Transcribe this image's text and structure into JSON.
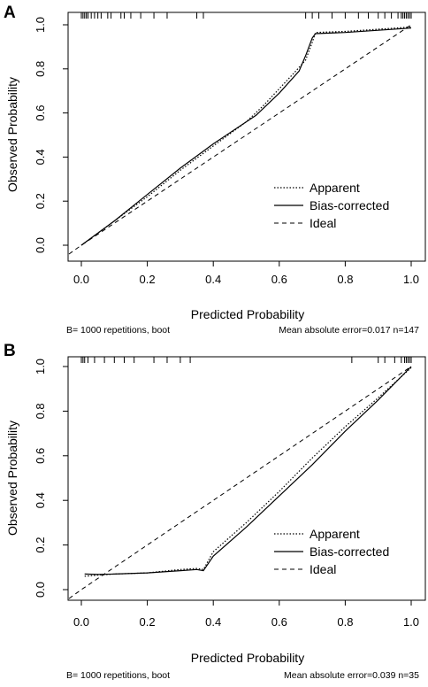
{
  "chart_data": [
    {
      "panel_label": "A",
      "type": "line",
      "xlabel": "Predicted Probability",
      "ylabel": "Observed Probability",
      "xlim": [
        0,
        1
      ],
      "ylim": [
        0,
        1
      ],
      "x_ticks": [
        "0.0",
        "0.2",
        "0.4",
        "0.6",
        "0.8",
        "1.0"
      ],
      "y_ticks": [
        "0.0",
        "0.2",
        "0.4",
        "0.6",
        "0.8",
        "1.0"
      ],
      "legend_position": "bottom-right",
      "footer_left": "B= 1000 repetitions, boot",
      "footer_right": "Mean absolute error=0.017 n=147",
      "series": [
        {
          "name": "Apparent",
          "style": "dotted",
          "x": [
            0.0,
            0.1,
            0.2,
            0.3,
            0.4,
            0.5,
            0.55,
            0.6,
            0.65,
            0.68,
            0.7,
            0.71,
            0.8,
            0.9,
            1.0
          ],
          "y": [
            0.0,
            0.11,
            0.22,
            0.34,
            0.45,
            0.56,
            0.63,
            0.71,
            0.79,
            0.84,
            0.92,
            0.965,
            0.97,
            0.98,
            0.99
          ]
        },
        {
          "name": "Bias-corrected",
          "style": "solid",
          "x": [
            0.0,
            0.1,
            0.2,
            0.3,
            0.4,
            0.5,
            0.53,
            0.6,
            0.66,
            0.68,
            0.7,
            0.71,
            0.8,
            0.9,
            1.0
          ],
          "y": [
            0.0,
            0.11,
            0.23,
            0.35,
            0.46,
            0.56,
            0.59,
            0.69,
            0.79,
            0.86,
            0.94,
            0.96,
            0.965,
            0.975,
            0.985
          ]
        },
        {
          "name": "Ideal",
          "style": "dashed",
          "x": [
            0.0,
            1.0
          ],
          "y": [
            0.0,
            1.0
          ]
        }
      ],
      "rug_top_x": [
        0.0,
        0.005,
        0.01,
        0.015,
        0.02,
        0.03,
        0.04,
        0.05,
        0.06,
        0.08,
        0.09,
        0.12,
        0.13,
        0.15,
        0.18,
        0.22,
        0.26,
        0.35,
        0.37,
        0.68,
        0.7,
        0.72,
        0.76,
        0.8,
        0.84,
        0.87,
        0.9,
        0.92,
        0.94,
        0.96,
        0.97,
        0.975,
        0.98,
        0.985,
        0.99,
        0.995,
        1.0
      ]
    },
    {
      "panel_label": "B",
      "type": "line",
      "xlabel": "Predicted Probability",
      "ylabel": "Observed Probability",
      "xlim": [
        0,
        1
      ],
      "ylim": [
        0,
        1
      ],
      "x_ticks": [
        "0.0",
        "0.2",
        "0.4",
        "0.6",
        "0.8",
        "1.0"
      ],
      "y_ticks": [
        "0.0",
        "0.2",
        "0.4",
        "0.6",
        "0.8",
        "1.0"
      ],
      "legend_position": "bottom-right",
      "footer_left": "B= 1000 repetitions, boot",
      "footer_right": "Mean absolute error=0.039 n=35",
      "series": [
        {
          "name": "Apparent",
          "style": "dotted",
          "x": [
            0.01,
            0.05,
            0.1,
            0.2,
            0.3,
            0.35,
            0.37,
            0.4,
            0.5,
            0.6,
            0.7,
            0.8,
            0.9,
            1.0
          ],
          "y": [
            0.06,
            0.065,
            0.07,
            0.075,
            0.09,
            0.095,
            0.09,
            0.17,
            0.3,
            0.44,
            0.59,
            0.73,
            0.86,
            0.995
          ]
        },
        {
          "name": "Bias-corrected",
          "style": "solid",
          "x": [
            0.01,
            0.05,
            0.1,
            0.2,
            0.3,
            0.35,
            0.37,
            0.4,
            0.5,
            0.6,
            0.7,
            0.8,
            0.9,
            1.0
          ],
          "y": [
            0.07,
            0.068,
            0.07,
            0.075,
            0.085,
            0.09,
            0.085,
            0.15,
            0.28,
            0.42,
            0.56,
            0.71,
            0.85,
            1.0
          ]
        },
        {
          "name": "Ideal",
          "style": "dashed",
          "x": [
            0.0,
            1.0
          ],
          "y": [
            0.0,
            1.0
          ]
        }
      ],
      "rug_top_x": [
        0.0,
        0.005,
        0.01,
        0.02,
        0.04,
        0.07,
        0.1,
        0.13,
        0.16,
        0.22,
        0.26,
        0.3,
        0.33,
        0.82,
        0.9,
        0.92,
        0.95,
        0.97,
        0.98,
        0.985,
        0.99,
        0.995,
        1.0
      ]
    }
  ]
}
